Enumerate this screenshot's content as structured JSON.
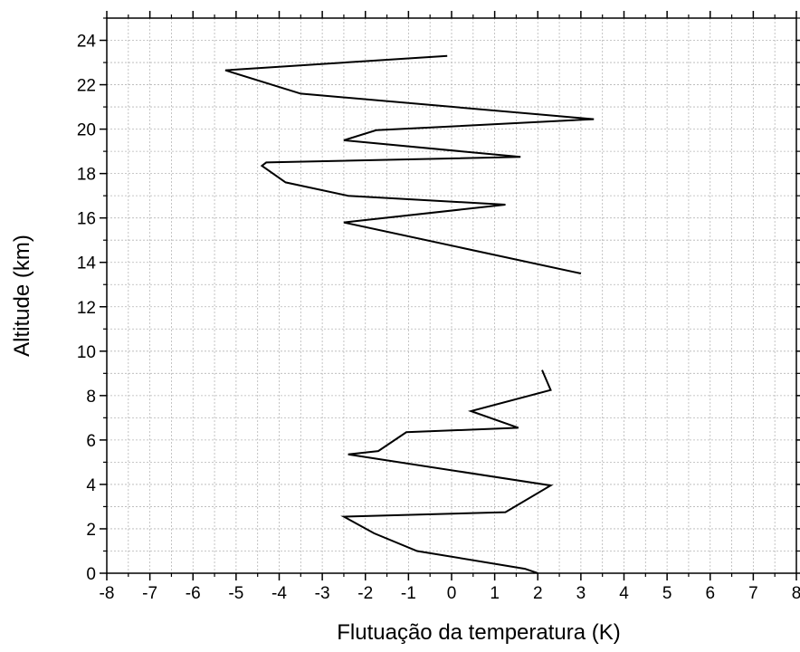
{
  "chart_data": {
    "type": "line",
    "title": "",
    "xlabel": "Flutuação da temperatura (K)",
    "ylabel": "Altitude (km)",
    "xlim": [
      -8,
      8
    ],
    "ylim": [
      0,
      25
    ],
    "xticks": [
      -8,
      -7,
      -6,
      -5,
      -4,
      -3,
      -2,
      -1,
      0,
      1,
      2,
      3,
      4,
      5,
      6,
      7,
      8
    ],
    "yticks": [
      0,
      2,
      4,
      6,
      8,
      10,
      12,
      14,
      16,
      18,
      20,
      22,
      24
    ],
    "xtick_labels": [
      "-8",
      "-7",
      "-6",
      "-5",
      "-4",
      "-3",
      "-2",
      "-1",
      "0",
      "1",
      "2",
      "3",
      "4",
      "5",
      "6",
      "7",
      "8"
    ],
    "ytick_labels": [
      "0",
      "2",
      "4",
      "6",
      "8",
      "10",
      "12",
      "14",
      "16",
      "18",
      "20",
      "22",
      "24"
    ],
    "grid": true,
    "line_color": "#000000",
    "grid_color": "#b5b5b5",
    "series": [
      {
        "x": [
          2.0,
          1.7,
          -0.8,
          -1.8,
          -2.5,
          1.25,
          2.3,
          -2.4,
          -1.7,
          -1.05,
          1.55,
          0.45,
          2.3,
          2.1
        ],
        "y": [
          0.0,
          0.2,
          1.0,
          1.8,
          2.55,
          2.75,
          3.95,
          5.35,
          5.5,
          6.35,
          6.55,
          7.3,
          8.25,
          9.15
        ]
      },
      {
        "x": [
          3.0,
          -2.5,
          1.25,
          -2.4,
          -3.85,
          -4.4,
          -4.3,
          1.6,
          -2.5,
          -1.75,
          3.3,
          -3.5,
          -5.25,
          -0.1
        ],
        "y": [
          13.5,
          15.8,
          16.6,
          17.0,
          17.6,
          18.35,
          18.5,
          18.75,
          19.5,
          19.95,
          20.45,
          21.6,
          22.65,
          23.3
        ]
      }
    ]
  }
}
